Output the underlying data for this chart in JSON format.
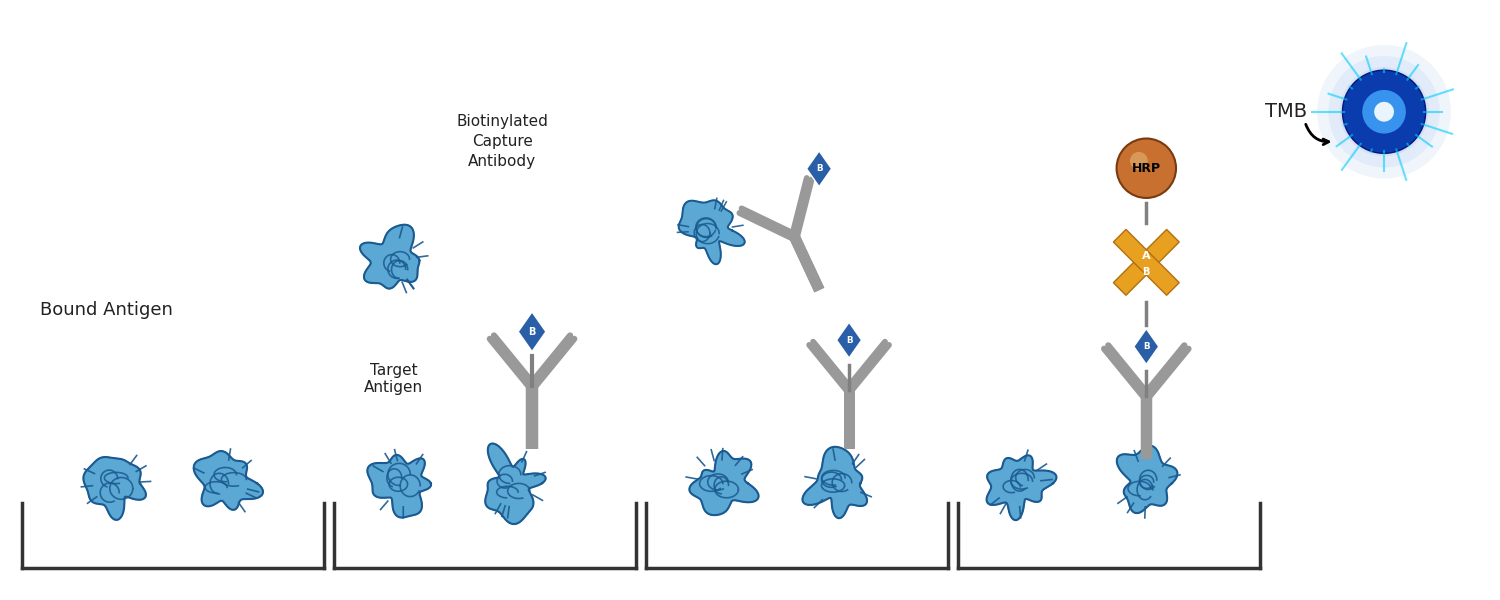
{
  "bg_color": "#ffffff",
  "fig_width": 15.0,
  "fig_height": 6.0,
  "dpi": 100,
  "antigen_color_light": "#5ba8d4",
  "antigen_color_dark": "#1a5a90",
  "antibody_color": "#999999",
  "biotin_color": "#2a5fa8",
  "hrp_color_light": "#c87030",
  "hrp_color_dark": "#7a3a10",
  "streptavidin_color": "#e8a020",
  "text_color": "#222222",
  "well_color": "#333333",
  "label_biotinylated": "Biotinylated\nCapture\nAntibody",
  "label_target": "Target\nAntigen",
  "label_bound": "Bound Antigen",
  "label_tmb": "TMB",
  "label_hrp": "HRP",
  "label_a": "A",
  "label_b": "B"
}
